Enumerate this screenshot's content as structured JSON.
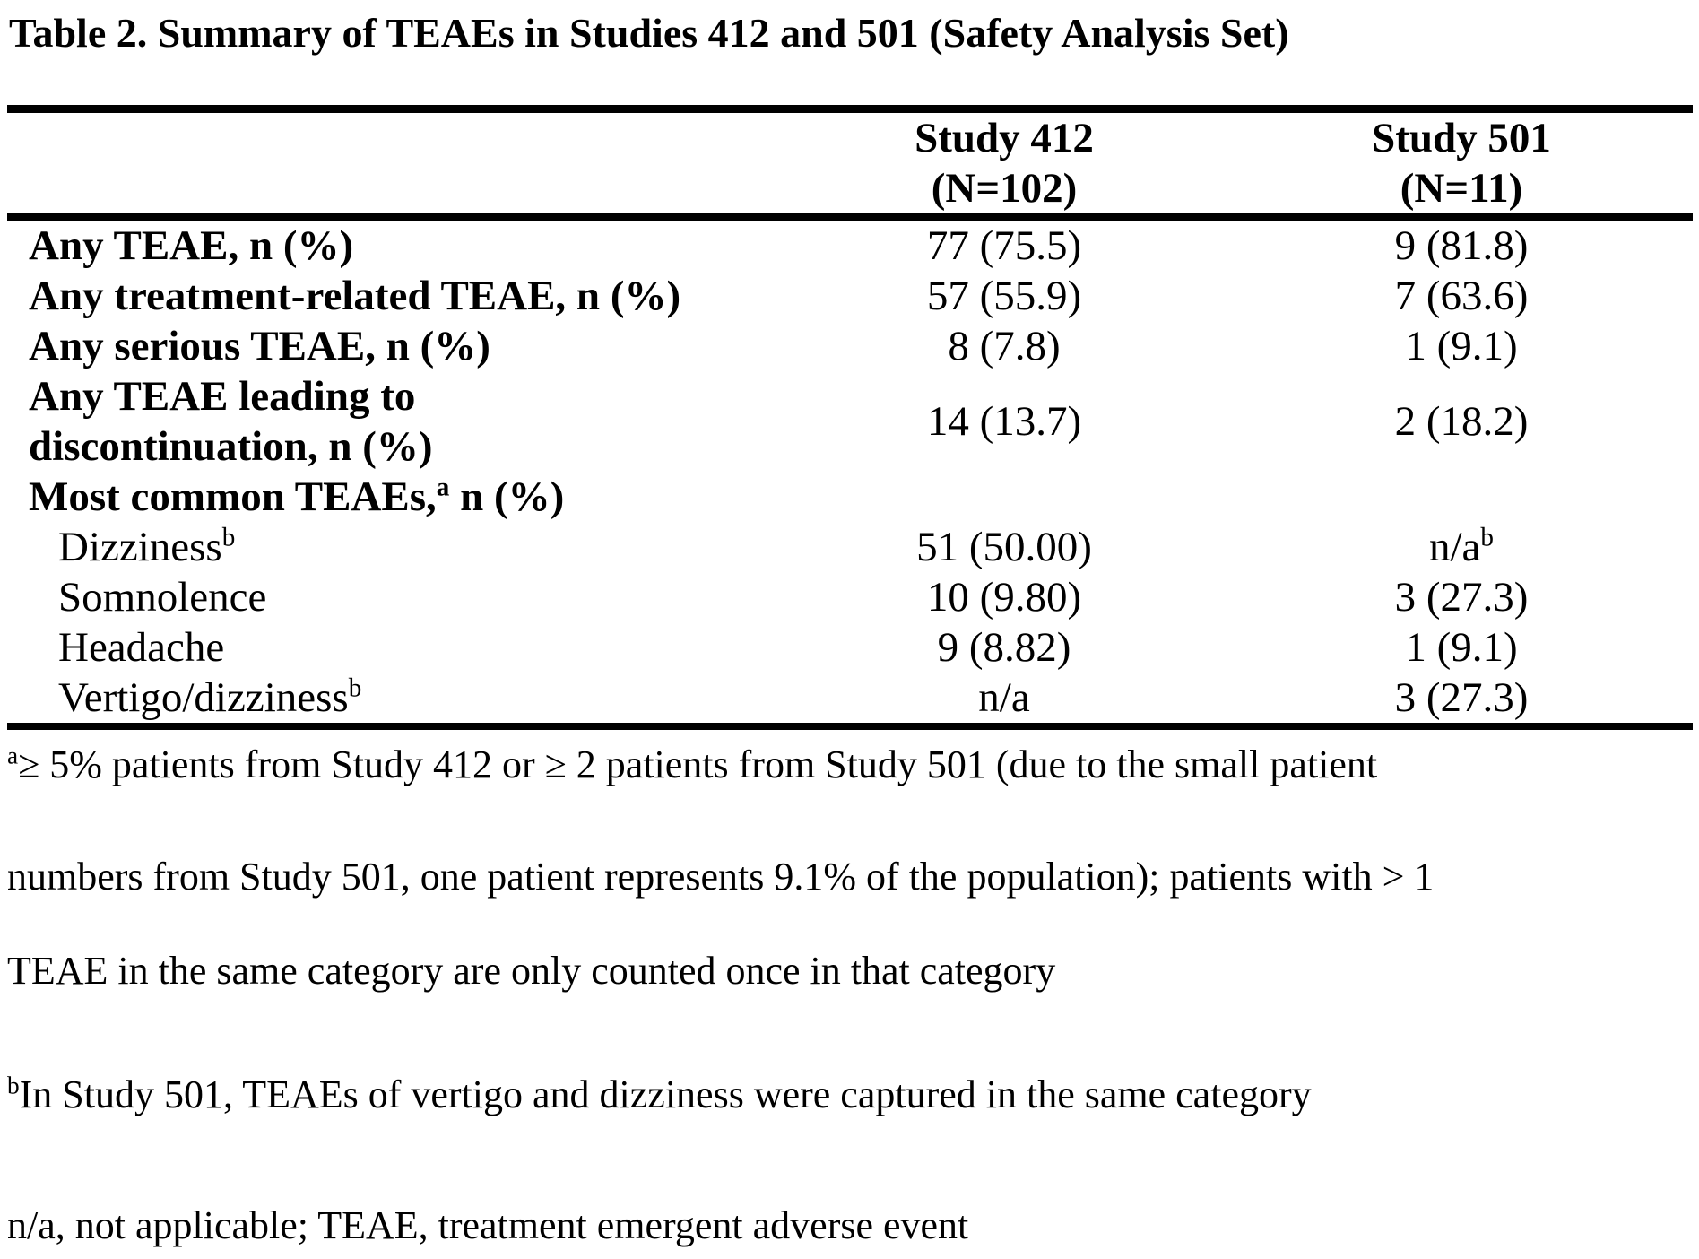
{
  "title": "Table 2. Summary of TEAEs in Studies 412 and 501 (Safety Analysis Set)",
  "table": {
    "columns": [
      {
        "name": "Study 412",
        "n": "(N=102)"
      },
      {
        "name": "Study 501",
        "n": "(N=11)"
      }
    ],
    "rows": [
      {
        "label": "Any TEAE, n (%)",
        "study412": "77 (75.5)",
        "study501": "9 (81.8)"
      },
      {
        "label": "Any treatment-related TEAE, n (%)",
        "study412": "57 (55.9)",
        "study501": "7 (63.6)"
      },
      {
        "label": "Any serious TEAE, n (%)",
        "study412": "8 (7.8)",
        "study501": "1 (9.1)"
      },
      {
        "label_line1": "Any TEAE leading to",
        "label_line2": "discontinuation, n (%)",
        "study412": "14 (13.7)",
        "study501": "2 (18.2)"
      },
      {
        "label": "Most common TEAEs,",
        "label_sup": "a",
        "label_after": " n (%)",
        "study412": "",
        "study501": ""
      },
      {
        "label": "Dizziness",
        "label_sup": "b",
        "study412": "51 (50.00)",
        "study501": "n/a",
        "study501_sup": "b"
      },
      {
        "label": "Somnolence",
        "study412": "10 (9.80)",
        "study501": "3 (27.3)"
      },
      {
        "label": "Headache",
        "study412": "9 (8.82)",
        "study501": "1 (9.1)"
      },
      {
        "label": "Vertigo/dizziness",
        "label_sup": "b",
        "study412": "n/a",
        "study501": "3 (27.3)"
      }
    ]
  },
  "footnotes": {
    "a_sup": "a",
    "a_line1": "≥ 5% patients from Study 412 or ≥ 2 patients from Study 501 (due to the small patient",
    "a_line2": "numbers from Study 501, one patient represents 9.1% of the population); patients with > 1",
    "a_line3": "TEAE in the same category are only counted once in that category",
    "b_sup": "b",
    "b_text": "In Study 501, TEAEs of vertigo and dizziness were captured in the same category",
    "abbrev": "n/a, not applicable; TEAE, treatment emergent adverse event"
  }
}
